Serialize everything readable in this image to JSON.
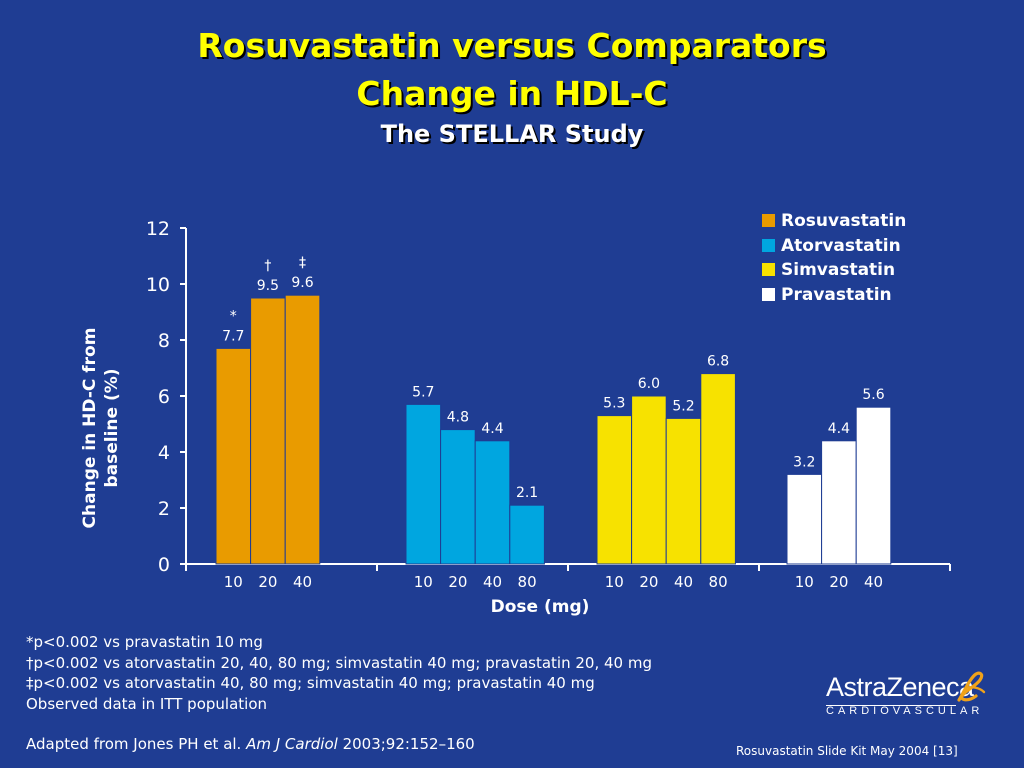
{
  "slide": {
    "title_line1": "Rosuvastatin versus Comparators",
    "title_line2": "Change in HDL-C",
    "subtitle": "The STELLAR Study"
  },
  "chart_data": {
    "type": "bar",
    "ylabel_line1": "Change in HD-C from",
    "ylabel_line2": "baseline (%)",
    "xlabel": "Dose (mg)",
    "ylim": [
      0,
      12
    ],
    "yticks": [
      "0",
      "2",
      "4",
      "6",
      "8",
      "10",
      "12"
    ],
    "grid": false,
    "legend_position": "top-right",
    "series": [
      {
        "name": "Rosuvastatin",
        "color": "#e99b00",
        "doses": [
          "10",
          "20",
          "40"
        ],
        "values": [
          7.7,
          9.5,
          9.6
        ],
        "value_labels": [
          "7.7",
          "9.5",
          "9.6"
        ],
        "markers": [
          "*",
          "†",
          "‡"
        ]
      },
      {
        "name": "Atorvastatin",
        "color": "#00a6e0",
        "doses": [
          "10",
          "20",
          "40",
          "80"
        ],
        "values": [
          5.7,
          4.8,
          4.4,
          2.1
        ],
        "value_labels": [
          "5.7",
          "4.8",
          "4.4",
          "2.1"
        ],
        "markers": [
          "",
          "",
          "",
          ""
        ]
      },
      {
        "name": "Simvastatin",
        "color": "#f7e200",
        "doses": [
          "10",
          "20",
          "40",
          "80"
        ],
        "values": [
          5.3,
          6.0,
          5.2,
          6.8
        ],
        "value_labels": [
          "5.3",
          "6.0",
          "5.2",
          "6.8"
        ],
        "markers": [
          "",
          "",
          "",
          ""
        ]
      },
      {
        "name": "Pravastatin",
        "color": "#ffffff",
        "doses": [
          "10",
          "20",
          "40"
        ],
        "values": [
          3.2,
          4.4,
          5.6
        ],
        "value_labels": [
          "3.2",
          "4.4",
          "5.6"
        ],
        "markers": [
          "",
          "",
          ""
        ]
      }
    ]
  },
  "footnotes": [
    "*p<0.002 vs pravastatin 10 mg",
    "†p<0.002 vs atorvastatin 20, 40, 80 mg; simvastatin 40 mg; pravastatin 20, 40 mg",
    "‡p<0.002 vs atorvastatin 40, 80 mg; simvastatin 40 mg; pravastatin 40 mg",
    "Observed data in ITT population"
  ],
  "reference": {
    "prefix": "Adapted from Jones PH et al. ",
    "journal": "Am J Cardiol",
    "suffix": " 2003;92:152–160"
  },
  "slide_kit": "Rosuvastatin Slide Kit May 2004 [13]",
  "logo": {
    "name": "AstraZeneca",
    "division": "CARDIOVASCULAR",
    "icon": "astrazeneca-swirl-icon",
    "color": "#f0a21a"
  },
  "colors": {
    "background": "#1f3d93",
    "title": "#ffff00"
  }
}
